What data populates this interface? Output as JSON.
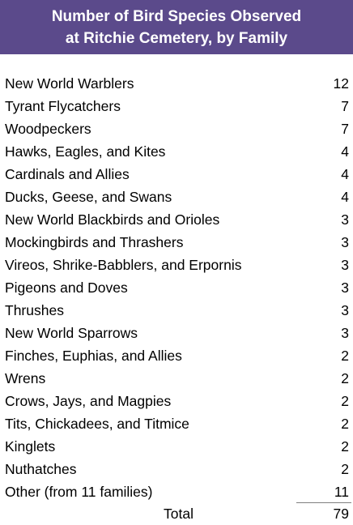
{
  "header": {
    "title_line1": "Number of Bird Species Observed",
    "title_line2": "at Ritchie Cemetery, by Family",
    "background_color": "#5b4a8b"
  },
  "rows": [
    {
      "family": "New World Warblers",
      "count": "12"
    },
    {
      "family": "Tyrant Flycatchers",
      "count": "7"
    },
    {
      "family": "Woodpeckers",
      "count": "7"
    },
    {
      "family": "Hawks, Eagles, and Kites",
      "count": "4"
    },
    {
      "family": "Cardinals and Allies",
      "count": "4"
    },
    {
      "family": "Ducks, Geese, and Swans",
      "count": "4"
    },
    {
      "family": "New World Blackbirds and Orioles",
      "count": "3"
    },
    {
      "family": "Mockingbirds and Thrashers",
      "count": "3"
    },
    {
      "family": "Vireos, Shrike-Babblers, and Erpornis",
      "count": "3"
    },
    {
      "family": "Pigeons and Doves",
      "count": "3"
    },
    {
      "family": "Thrushes",
      "count": "3"
    },
    {
      "family": "New World Sparrows",
      "count": "3"
    },
    {
      "family": "Finches, Euphias, and Allies",
      "count": "2"
    },
    {
      "family": "Wrens",
      "count": "2"
    },
    {
      "family": "Crows, Jays, and Magpies",
      "count": "2"
    },
    {
      "family": "Tits, Chickadees, and Titmice",
      "count": "2"
    },
    {
      "family": "Kinglets",
      "count": "2"
    },
    {
      "family": "Nuthatches",
      "count": "2"
    },
    {
      "family": "Other (from 11 families)",
      "count": "11"
    }
  ],
  "total": {
    "label": "Total",
    "value": "79"
  }
}
